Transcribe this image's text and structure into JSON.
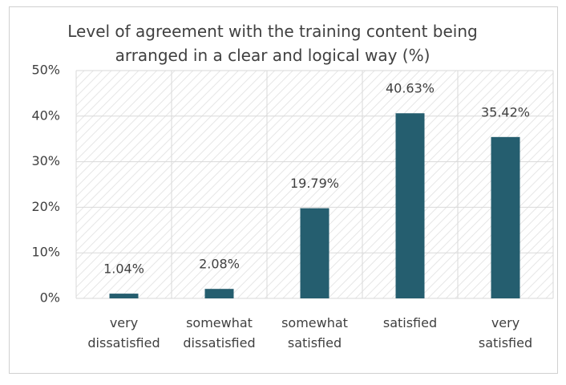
{
  "chart_data": {
    "type": "bar",
    "title": "Level of agreement with the training content being arranged in a clear and logical way (%)",
    "categories": [
      "very dissatisfied",
      "somewhat dissatisfied",
      "somewhat satisfied",
      "satisfied",
      "very satisfied"
    ],
    "values": [
      1.04,
      2.08,
      19.79,
      40.63,
      35.42
    ],
    "value_labels": [
      "1.04%",
      "2.08%",
      "19.79%",
      "40.63%",
      "35.42%"
    ],
    "color": "#255e6f",
    "ylim": [
      0,
      50
    ],
    "yticks": [
      {
        "value": 0,
        "label": "0%"
      },
      {
        "value": 10,
        "label": "10%"
      },
      {
        "value": 20,
        "label": "20%"
      },
      {
        "value": 30,
        "label": "30%"
      },
      {
        "value": 40,
        "label": "40%"
      },
      {
        "value": 50,
        "label": "50%"
      }
    ],
    "grid": true
  }
}
